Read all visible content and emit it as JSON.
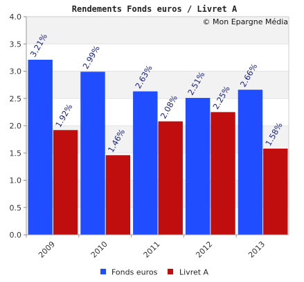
{
  "chart_data": {
    "type": "bar",
    "title": "Rendements Fonds euros / Livret A",
    "credit": "© Mon Epargne Média",
    "categories": [
      "2009",
      "2010",
      "2011",
      "2012",
      "2013"
    ],
    "series": [
      {
        "name": "Fonds euros",
        "color": "#1f4dff",
        "values": [
          3.21,
          2.99,
          2.63,
          2.51,
          2.66
        ],
        "labels": [
          "3.21%",
          "2.99%",
          "2.63%",
          "2.51%",
          "2.66%"
        ],
        "label_color": "#1a237e"
      },
      {
        "name": "Livret A",
        "color": "#c00d0d",
        "values": [
          1.92,
          1.46,
          2.08,
          2.25,
          1.58
        ],
        "labels": [
          "1.92%",
          "1.46%",
          "2.08%",
          "2.25%",
          "1.58%"
        ],
        "label_color": "#1a237e"
      }
    ],
    "yticks": [
      "0.0",
      "0.5",
      "1.0",
      "1.5",
      "2.0",
      "2.5",
      "3.0",
      "3.5",
      "4.0"
    ],
    "ylim": [
      0,
      4
    ],
    "xlabel": "",
    "ylabel": "",
    "grid": true,
    "legend_position": "bottom"
  }
}
